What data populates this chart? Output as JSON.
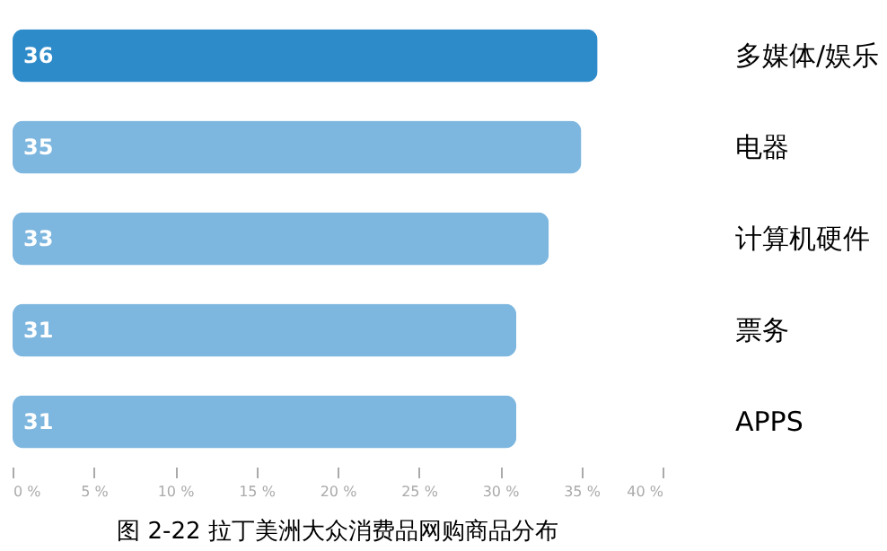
{
  "chart_data": {
    "type": "bar",
    "orientation": "horizontal",
    "title": "图 2-22 拉丁美洲大众消费品网购商品分布",
    "categories": [
      "多媒体/娱乐",
      "电器",
      "计算机硬件",
      "票务",
      "APPS"
    ],
    "values": [
      36,
      35,
      33,
      31,
      31
    ],
    "colors": [
      "#2e8bc9",
      "#7db6de",
      "#7db6de",
      "#7db6de",
      "#7db6de"
    ],
    "xlim": [
      0,
      40
    ],
    "xticks": [
      {
        "value": 0,
        "label": "0 %"
      },
      {
        "value": 5,
        "label": "5 %"
      },
      {
        "value": 10,
        "label": "10 %"
      },
      {
        "value": 15,
        "label": "15 %"
      },
      {
        "value": 20,
        "label": "20 %"
      },
      {
        "value": 25,
        "label": "25 %"
      },
      {
        "value": 30,
        "label": "30 %"
      },
      {
        "value": 35,
        "label": "35 %"
      },
      {
        "value": 40,
        "label": "40 %"
      }
    ],
    "grid": false,
    "data_labels": true
  }
}
